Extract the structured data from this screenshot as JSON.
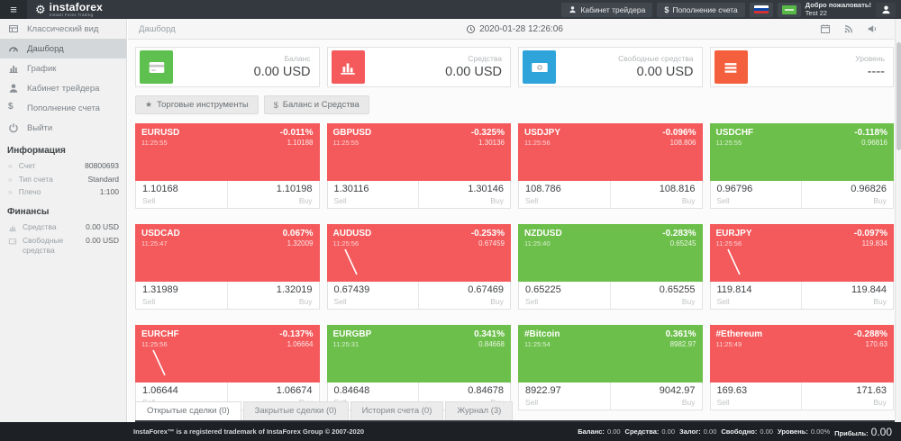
{
  "header": {
    "logo": {
      "brand": "instaforex",
      "tagline": "Instant Forex Trading"
    },
    "trader_cabinet": "Кабинет трейдера",
    "deposit_prefix": "$",
    "deposit": "Пополнение счета",
    "welcome": "Добро пожаловать!",
    "username": "Test 22"
  },
  "sidebar": {
    "menu": [
      {
        "icon": "classic-view-icon",
        "label": "Классический вид",
        "active": false
      },
      {
        "icon": "dashboard-icon",
        "label": "Дашборд",
        "active": true
      },
      {
        "icon": "bar-chart-icon",
        "label": "График",
        "active": false
      },
      {
        "icon": "user-icon",
        "label": "Кабинет трейдера",
        "active": false
      },
      {
        "icon": "dollar-icon",
        "label": "Пополнение счета",
        "active": false
      },
      {
        "icon": "power-icon",
        "label": "Выйти",
        "active": false
      }
    ],
    "info": {
      "title": "Информация",
      "rows": [
        {
          "label": "Счет",
          "value": "80800693"
        },
        {
          "label": "Тип счета",
          "value": "Standard"
        },
        {
          "label": "Плечо",
          "value": "1:100"
        }
      ]
    },
    "finance": {
      "title": "Финансы",
      "rows": [
        {
          "icon": "chart-small-icon",
          "label": "Средства",
          "value": "0.00 USD"
        },
        {
          "icon": "wallet-icon",
          "label": "Свободные средства",
          "value": "0.00 USD"
        }
      ]
    }
  },
  "topbar": {
    "breadcrumb": "Дашборд",
    "datetime": "2020-01-28 12:26:06"
  },
  "stat_cards": [
    {
      "label": "Баланс",
      "value": "0.00 USD",
      "icon": "credit-card-icon",
      "color": "#5ec14f"
    },
    {
      "label": "Средства",
      "value": "0.00 USD",
      "icon": "bars-white-icon",
      "color": "#f4595b"
    },
    {
      "label": "Свободные средства",
      "value": "0.00 USD",
      "icon": "banknote-icon",
      "color": "#2fa4da"
    },
    {
      "label": "Уровень",
      "value": "----",
      "icon": "list-icon",
      "color": "#f4603d"
    }
  ],
  "toolbar": {
    "instruments_glyph": "★",
    "instruments": "Торговые инструменты",
    "balance_glyph": "$",
    "balance": "Баланс и Средства"
  },
  "labels": {
    "sell": "Sell",
    "buy": "Buy"
  },
  "colors": {
    "red": "#f4595b",
    "green": "#6cbf4a"
  },
  "tiles": [
    {
      "symbol": "EURUSD",
      "time": "11:25:55",
      "change": "-0.011%",
      "value": "1.10188",
      "sell": "1.10168",
      "buy": "1.10198",
      "color": "red",
      "sparkline": false
    },
    {
      "symbol": "GBPUSD",
      "time": "11:25:55",
      "change": "-0.325%",
      "value": "1.30136",
      "sell": "1.30116",
      "buy": "1.30146",
      "color": "red",
      "sparkline": false
    },
    {
      "symbol": "USDJPY",
      "time": "11:25:56",
      "change": "-0.096%",
      "value": "108.806",
      "sell": "108.786",
      "buy": "108.816",
      "color": "red",
      "sparkline": false
    },
    {
      "symbol": "USDCHF",
      "time": "11:25:55",
      "change": "-0.118%",
      "value": "0.96816",
      "sell": "0.96796",
      "buy": "0.96826",
      "color": "green",
      "sparkline": false
    },
    {
      "symbol": "USDCAD",
      "time": "11:25:47",
      "change": "0.067%",
      "value": "1.32009",
      "sell": "1.31989",
      "buy": "1.32019",
      "color": "red",
      "sparkline": false
    },
    {
      "symbol": "AUDUSD",
      "time": "11:25:56",
      "change": "-0.253%",
      "value": "0.67459",
      "sell": "0.67439",
      "buy": "0.67469",
      "color": "red",
      "sparkline": true
    },
    {
      "symbol": "NZDUSD",
      "time": "11:25:40",
      "change": "-0.283%",
      "value": "0.65245",
      "sell": "0.65225",
      "buy": "0.65255",
      "color": "green",
      "sparkline": false
    },
    {
      "symbol": "EURJPY",
      "time": "11:25:56",
      "change": "-0.097%",
      "value": "119.834",
      "sell": "119.814",
      "buy": "119.844",
      "color": "red",
      "sparkline": true
    },
    {
      "symbol": "EURCHF",
      "time": "11:25:56",
      "change": "-0.137%",
      "value": "1.06664",
      "sell": "1.06644",
      "buy": "1.06674",
      "color": "red",
      "sparkline": true
    },
    {
      "symbol": "EURGBP",
      "time": "11:25:31",
      "change": "0.341%",
      "value": "0.84668",
      "sell": "0.84648",
      "buy": "0.84678",
      "color": "green",
      "sparkline": false
    },
    {
      "symbol": "#Bitcoin",
      "time": "11:25:54",
      "change": "0.361%",
      "value": "8982.97",
      "sell": "8922.97",
      "buy": "9042.97",
      "color": "green",
      "sparkline": false
    },
    {
      "symbol": "#Ethereum",
      "time": "11:25:49",
      "change": "-0.288%",
      "value": "170.63",
      "sell": "169.63",
      "buy": "171.63",
      "color": "red",
      "sparkline": false
    }
  ],
  "tabs": [
    {
      "label": "Открытые сделки (0)",
      "active": true
    },
    {
      "label": "Закрытые сделки (0)",
      "active": false
    },
    {
      "label": "История счета (0)",
      "active": false
    },
    {
      "label": "Журнал (3)",
      "active": false
    }
  ],
  "footer": {
    "copyright": "InstaForex™ is a registered trademark of InstaForex Group © 2007-2020",
    "stats": [
      {
        "label": "Баланс:",
        "value": "0.00",
        "big": false
      },
      {
        "label": "Средства:",
        "value": "0.00",
        "big": false
      },
      {
        "label": "Залог:",
        "value": "0.00",
        "big": false
      },
      {
        "label": "Свободно:",
        "value": "0.00",
        "big": false
      },
      {
        "label": "Уровень:",
        "value": "0.00%",
        "big": false
      },
      {
        "label": "Прибыль:",
        "value": "0.00",
        "big": true
      }
    ]
  }
}
